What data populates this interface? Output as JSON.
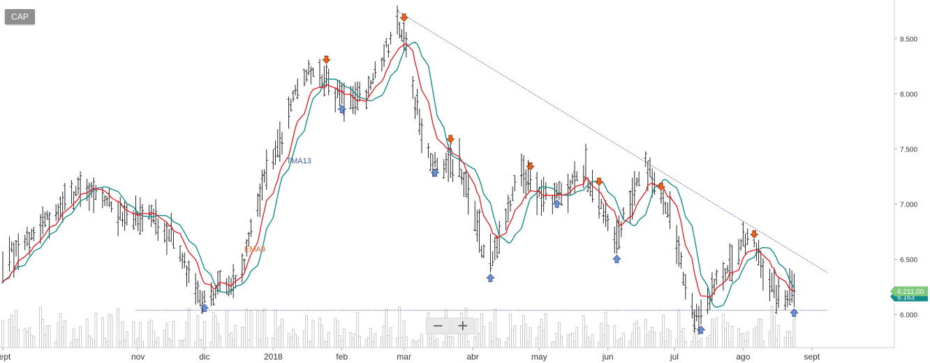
{
  "ticker": "CAP",
  "zoom": {
    "zoom_out_icon": "minus-icon",
    "zoom_in_icon": "plus-icon",
    "zoom_out_label": "−",
    "zoom_in_label": "+"
  },
  "colors": {
    "price_bars": "#222222",
    "ema": "#e8141c",
    "tma": "#148c8c",
    "trendline": "#2a3fb0",
    "support": "#2a3fb0",
    "volume": "#bdbdbd",
    "down_arrow": "#e8601c",
    "up_arrow": "#6c8fd6",
    "last_price_badge": "#7fc97f",
    "tma_badge": "#148c8c",
    "ema_label": "#e8601c",
    "tma_label": "#3a5ea8"
  },
  "chart_data": {
    "type": "ohlc",
    "x_axis": {
      "type": "date",
      "range": [
        "2017-09-01",
        "2018-09-08"
      ],
      "ticks": [
        {
          "date": "2017-09-01",
          "label": "sept"
        },
        {
          "date": "2017-11-01",
          "label": "nov"
        },
        {
          "date": "2017-12-01",
          "label": "dic"
        },
        {
          "date": "2018-01-01",
          "label": "2018"
        },
        {
          "date": "2018-02-01",
          "label": "feb"
        },
        {
          "date": "2018-03-01",
          "label": "mar"
        },
        {
          "date": "2018-04-01",
          "label": "abr"
        },
        {
          "date": "2018-05-01",
          "label": "may"
        },
        {
          "date": "2018-06-01",
          "label": "jun"
        },
        {
          "date": "2018-07-01",
          "label": "jul"
        },
        {
          "date": "2018-08-01",
          "label": "ago"
        },
        {
          "date": "2018-09-01",
          "label": "sept"
        }
      ]
    },
    "y_axis": {
      "range": [
        5.7,
        8.85
      ],
      "position": "right",
      "ticks": [
        {
          "value": 6.0,
          "label": "6.000"
        },
        {
          "value": 6.5,
          "label": "6.500"
        },
        {
          "value": 7.0,
          "label": "7.000"
        },
        {
          "value": 7.5,
          "label": "7.500"
        },
        {
          "value": 8.0,
          "label": "8.000"
        },
        {
          "value": 8.5,
          "label": "8.500"
        }
      ]
    },
    "grid": false,
    "price_anchors": [
      [
        "2017-09-01",
        6.45
      ],
      [
        "2017-09-12",
        6.7
      ],
      [
        "2017-09-25",
        6.95
      ],
      [
        "2017-10-06",
        7.15
      ],
      [
        "2017-10-17",
        7.08
      ],
      [
        "2017-10-26",
        6.9
      ],
      [
        "2017-11-04",
        6.9
      ],
      [
        "2017-11-15",
        6.75
      ],
      [
        "2017-11-22",
        6.45
      ],
      [
        "2017-11-28",
        6.15
      ],
      [
        "2017-12-04",
        6.2
      ],
      [
        "2017-12-12",
        6.25
      ],
      [
        "2017-12-18",
        6.4
      ],
      [
        "2017-12-26",
        7.1
      ],
      [
        "2018-01-05",
        7.6
      ],
      [
        "2018-01-12",
        8.1
      ],
      [
        "2018-01-20",
        8.2
      ],
      [
        "2018-01-27",
        8.05
      ],
      [
        "2018-02-03",
        7.9
      ],
      [
        "2018-02-12",
        8.0
      ],
      [
        "2018-02-20",
        8.35
      ],
      [
        "2018-02-27",
        8.65
      ],
      [
        "2018-03-03",
        8.3
      ],
      [
        "2018-03-09",
        7.6
      ],
      [
        "2018-03-16",
        7.3
      ],
      [
        "2018-03-25",
        7.4
      ],
      [
        "2018-04-01",
        6.9
      ],
      [
        "2018-04-07",
        6.5
      ],
      [
        "2018-04-14",
        6.7
      ],
      [
        "2018-04-22",
        7.3
      ],
      [
        "2018-04-28",
        7.2
      ],
      [
        "2018-05-05",
        7.05
      ],
      [
        "2018-05-14",
        7.15
      ],
      [
        "2018-05-22",
        7.3
      ],
      [
        "2018-05-28",
        7.0
      ],
      [
        "2018-06-05",
        6.7
      ],
      [
        "2018-06-12",
        7.1
      ],
      [
        "2018-06-18",
        7.35
      ],
      [
        "2018-06-25",
        7.1
      ],
      [
        "2018-07-02",
        6.7
      ],
      [
        "2018-07-07",
        6.05
      ],
      [
        "2018-07-12",
        5.95
      ],
      [
        "2018-07-20",
        6.3
      ],
      [
        "2018-07-30",
        6.6
      ],
      [
        "2018-08-04",
        6.75
      ],
      [
        "2018-08-10",
        6.4
      ],
      [
        "2018-08-17",
        6.15
      ],
      [
        "2018-08-24",
        6.21
      ]
    ],
    "series": [
      {
        "name": "EMA9",
        "period": 9,
        "color_key": "ema"
      },
      {
        "name": "TMA13",
        "period": 13,
        "color_key": "tma"
      }
    ],
    "signals": [
      {
        "date": "2017-12-01",
        "dir": "up"
      },
      {
        "date": "2018-01-25",
        "dir": "down"
      },
      {
        "date": "2018-02-01",
        "dir": "up"
      },
      {
        "date": "2018-03-01",
        "dir": "down"
      },
      {
        "date": "2018-03-15",
        "dir": "up"
      },
      {
        "date": "2018-03-22",
        "dir": "down"
      },
      {
        "date": "2018-04-08",
        "dir": "up"
      },
      {
        "date": "2018-04-27",
        "dir": "down"
      },
      {
        "date": "2018-05-09",
        "dir": "up"
      },
      {
        "date": "2018-05-28",
        "dir": "down"
      },
      {
        "date": "2018-06-05",
        "dir": "up"
      },
      {
        "date": "2018-06-24",
        "dir": "down"
      },
      {
        "date": "2018-07-14",
        "dir": "up"
      },
      {
        "date": "2018-08-06",
        "dir": "down"
      },
      {
        "date": "2018-08-24",
        "dir": "up"
      }
    ],
    "trendline": {
      "start": [
        "2018-02-26",
        8.75
      ],
      "end": [
        "2018-09-08",
        6.38
      ]
    },
    "support_line": {
      "value": 6.04,
      "from": "2017-10-31",
      "to": "2018-09-08"
    },
    "annotations": [
      {
        "text": "EMA9",
        "date": "2017-12-19",
        "value": 6.57,
        "color_key": "ema_label"
      },
      {
        "text": "TMA13",
        "date": "2018-01-07",
        "value": 7.37,
        "color_key": "tma_label"
      }
    ],
    "last_price": {
      "value": 6.211,
      "label": "6.211,00"
    },
    "tma_last": {
      "value": 6.163,
      "label": "6.163"
    }
  }
}
